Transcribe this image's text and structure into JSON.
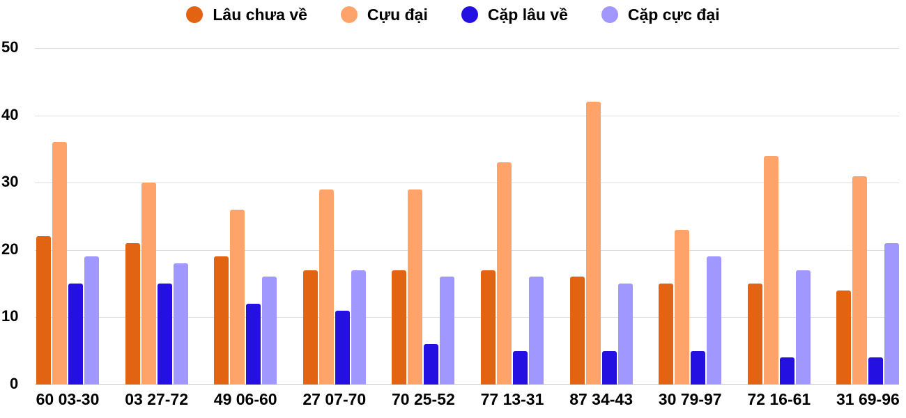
{
  "chart_data": {
    "type": "bar",
    "title": "",
    "xlabel": "",
    "ylabel": "",
    "ylim": [
      0,
      50
    ],
    "yticks": [
      0,
      10,
      20,
      30,
      40,
      50
    ],
    "grid": true,
    "legend_position": "top",
    "categories": [
      "60 03-30",
      "03 27-72",
      "49 06-60",
      "27 07-70",
      "70 25-52",
      "77 13-31",
      "87 34-43",
      "30 79-97",
      "72 16-61",
      "31 69-96"
    ],
    "series": [
      {
        "name": "Lâu chưa về",
        "color": "#e26413",
        "values": [
          22,
          21,
          19,
          17,
          17,
          17,
          16,
          15,
          15,
          14
        ]
      },
      {
        "name": "Cựu đại",
        "color": "#fea36a",
        "values": [
          36,
          30,
          26,
          29,
          29,
          33,
          42,
          23,
          34,
          31
        ]
      },
      {
        "name": "Cặp lâu về",
        "color": "#2510e2",
        "values": [
          15,
          15,
          12,
          11,
          6,
          5,
          5,
          5,
          4,
          4
        ]
      },
      {
        "name": "Cặp cực đại",
        "color": "#a098fe",
        "values": [
          19,
          18,
          16,
          17,
          16,
          16,
          15,
          19,
          17,
          21
        ]
      }
    ]
  }
}
